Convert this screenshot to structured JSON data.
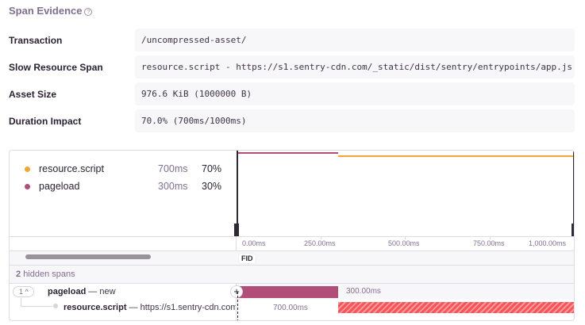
{
  "section": {
    "title": "Span Evidence",
    "help_icon": "question-circle-icon"
  },
  "evidence": [
    {
      "label": "Transaction",
      "value": "/uncompressed-asset/"
    },
    {
      "label": "Slow Resource Span",
      "value": "resource.script - https://s1.sentry-cdn.com/_static/dist/sentry/entrypoints/app.js"
    },
    {
      "label": "Asset Size",
      "value": "976.6 KiB (1000000 B)"
    },
    {
      "label": "Duration Impact",
      "value": "70.0% (700ms/1000ms)"
    }
  ],
  "legend": [
    {
      "name": "resource.script",
      "duration": "700ms",
      "percent": "70%",
      "color": "#f2a735"
    },
    {
      "name": "pageload",
      "duration": "300ms",
      "percent": "30%",
      "color": "#b04e78"
    }
  ],
  "ticks": [
    "0.00ms",
    "250.00ms",
    "500.00ms",
    "750.00ms",
    "1,000.00ms"
  ],
  "fid_label": "FID",
  "hidden": {
    "count": "2",
    "text": "hidden spans"
  },
  "spans": [
    {
      "toggle": "1",
      "op": "pageload",
      "desc": "— new",
      "duration": "300.00ms",
      "color": "#b04e78"
    },
    {
      "op": "resource.script",
      "desc": "— https://s1.sentry-cdn.com/",
      "duration": "700.00ms",
      "color": "#f55459"
    }
  ]
}
